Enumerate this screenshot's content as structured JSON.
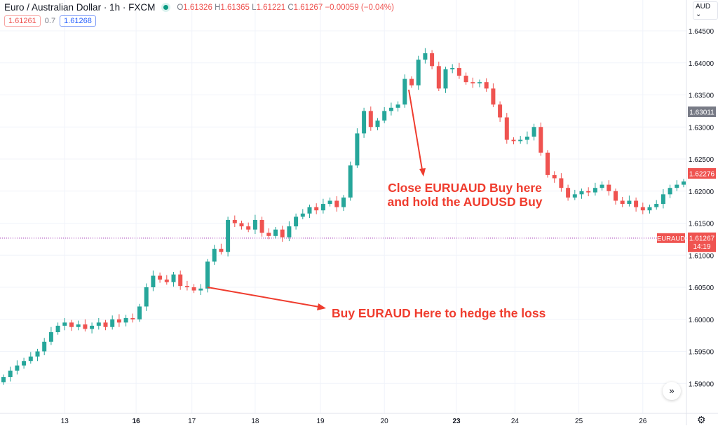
{
  "header": {
    "symbol": "Euro / Australian Dollar · 1h · FXCM",
    "open_label": "O",
    "open": "1.61326",
    "high_label": "H",
    "high": "1.61365",
    "low_label": "L",
    "low": "1.61221",
    "close_label": "C",
    "close": "1.61267",
    "change": "−0.00059 (−0.04%)",
    "sell_price": "1.61261",
    "spread": "0.7",
    "buy_price": "1.61268",
    "currency": "AUD ⌄"
  },
  "annotations": {
    "close_note_line1": "Close EURUAUD Buy here",
    "close_note_line2": "and hold the AUDUSD Buy",
    "buy_note": "Buy EURAUD Here to hedge the loss"
  },
  "controls": {
    "scroll_to_latest": "»",
    "settings": "⚙"
  },
  "colors": {
    "up": "#26a69a",
    "down": "#ef5350",
    "annotation": "#ef3c2e",
    "price_line": "#9c27b0"
  },
  "chart_data": {
    "type": "candlestick",
    "title": "",
    "y_ticks": [
      "1.64500",
      "1.64000",
      "1.63500",
      "1.63000",
      "1.62500",
      "1.62000",
      "1.61500",
      "1.61000",
      "1.60500",
      "1.60000",
      "1.59500",
      "1.59000"
    ],
    "ylim": [
      1.5875,
      1.6505
    ],
    "x_ticks": [
      {
        "label": "13",
        "index": 9
      },
      {
        "label": "16",
        "index": 19.5
      },
      {
        "label": "17",
        "index": 27.7
      },
      {
        "label": "18",
        "index": 37
      },
      {
        "label": "19",
        "index": 46.6
      },
      {
        "label": "20",
        "index": 56
      },
      {
        "label": "23",
        "index": 66.6
      },
      {
        "label": "24",
        "index": 75.2
      },
      {
        "label": "25",
        "index": 84.6
      },
      {
        "label": "26",
        "index": 94
      }
    ],
    "close": [
      1.591,
      1.592,
      1.5928,
      1.5935,
      1.5942,
      1.595,
      1.5965,
      1.598,
      1.599,
      1.5995,
      1.5988,
      1.5992,
      1.5985,
      1.599,
      1.5995,
      1.5988,
      1.6,
      1.5995,
      1.6002,
      1.6,
      1.602,
      1.605,
      1.6068,
      1.6062,
      1.6058,
      1.607,
      1.6052,
      1.605,
      1.6045,
      1.6048,
      1.609,
      1.611,
      1.6105,
      1.6155,
      1.615,
      1.6145,
      1.614,
      1.6155,
      1.6135,
      1.613,
      1.614,
      1.6128,
      1.6145,
      1.616,
      1.6165,
      1.6175,
      1.617,
      1.618,
      1.6185,
      1.6175,
      1.619,
      1.624,
      1.629,
      1.6325,
      1.63,
      1.631,
      1.6325,
      1.633,
      1.6335,
      1.6375,
      1.6365,
      1.6405,
      1.6415,
      1.6395,
      1.636,
      1.639,
      1.6392,
      1.638,
      1.637,
      1.6368,
      1.637,
      1.636,
      1.6335,
      1.6315,
      1.628,
      1.6278,
      1.628,
      1.6285,
      1.63,
      1.626,
      1.6225,
      1.622,
      1.6205,
      1.619,
      1.6195,
      1.62,
      1.6198,
      1.6205,
      1.621,
      1.62,
      1.6185,
      1.618,
      1.6185,
      1.6175,
      1.617,
      1.6175,
      1.618,
      1.6195,
      1.6205,
      1.621,
      1.6215
    ],
    "price_labels": {
      "crosshair": "1.63011",
      "last": "1.62276",
      "symbol_tag": "EURAUD",
      "bid": "1.61267",
      "countdown": "14:19"
    },
    "bid_line": 1.61267
  }
}
